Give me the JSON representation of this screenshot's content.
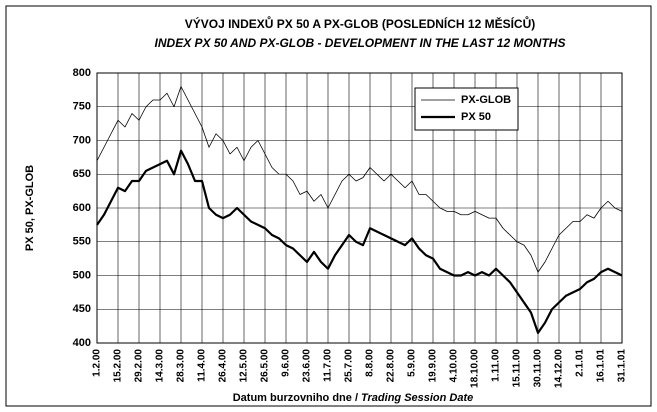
{
  "chart_data": {
    "type": "line",
    "title": "VÝVOJ INDEXŮ PX 50  A PX-GLOB (POSLEDNÍCH 12 MĚSÍCŮ)",
    "subtitle": "INDEX PX 50 AND PX-GLOB - DEVELOPMENT IN THE LAST 12 MONTHS",
    "xlabel": "Datum burzovniho dne /",
    "xlabel_en": "Trading Session Date",
    "ylabel": "PX 50, PX-GLOB",
    "categories": [
      "1.2.00",
      null,
      null,
      "15.2.00",
      null,
      null,
      "29.2.00",
      null,
      null,
      "14.3.00",
      null,
      null,
      "28.3.00",
      null,
      null,
      "11.4.00",
      null,
      null,
      "26.4.00",
      null,
      null,
      "12.5.00",
      null,
      null,
      "26.5.00",
      null,
      null,
      "9.6.00",
      null,
      null,
      "23.6.00",
      null,
      null,
      "11.7.00",
      null,
      null,
      "25.7.00",
      null,
      null,
      "8.8.00",
      null,
      null,
      "22.8.00",
      null,
      null,
      "5.9.00",
      null,
      null,
      "19.9.00",
      null,
      null,
      "4.10.00",
      null,
      null,
      "18.10.00",
      null,
      null,
      "1.11.00",
      null,
      null,
      "15.11.00",
      null,
      null,
      "30.11.00",
      null,
      null,
      "14.12.00",
      null,
      null,
      "2.1.01",
      null,
      null,
      "16.1.01",
      null,
      null,
      "31.1.01"
    ],
    "series": [
      {
        "name": "PX-GLOB",
        "color": "#000000",
        "width": 0.8,
        "values": [
          670,
          690,
          710,
          730,
          720,
          740,
          730,
          750,
          760,
          760,
          770,
          750,
          780,
          760,
          740,
          720,
          690,
          710,
          700,
          680,
          690,
          670,
          690,
          700,
          680,
          660,
          650,
          650,
          640,
          620,
          625,
          610,
          620,
          600,
          620,
          640,
          650,
          640,
          645,
          660,
          650,
          640,
          650,
          640,
          630,
          640,
          620,
          620,
          610,
          600,
          595,
          595,
          590,
          590,
          595,
          590,
          585,
          585,
          570,
          560,
          550,
          545,
          530,
          505,
          520,
          540,
          560,
          570,
          580,
          580,
          590,
          585,
          600,
          610,
          600,
          595
        ]
      },
      {
        "name": "PX 50",
        "color": "#000000",
        "width": 2.2,
        "values": [
          575,
          590,
          610,
          630,
          625,
          640,
          640,
          655,
          660,
          665,
          670,
          650,
          685,
          665,
          640,
          640,
          600,
          590,
          585,
          590,
          600,
          590,
          580,
          575,
          570,
          560,
          555,
          545,
          540,
          530,
          520,
          535,
          520,
          510,
          530,
          545,
          560,
          550,
          545,
          570,
          565,
          560,
          555,
          550,
          545,
          555,
          540,
          530,
          525,
          510,
          505,
          500,
          500,
          505,
          500,
          505,
          500,
          510,
          500,
          490,
          475,
          460,
          445,
          415,
          430,
          450,
          460,
          470,
          475,
          480,
          490,
          495,
          505,
          510,
          505,
          500
        ]
      }
    ],
    "ylim": [
      400,
      800
    ],
    "yticks": [
      400,
      450,
      500,
      550,
      600,
      650,
      700,
      750,
      800
    ],
    "grid": true,
    "legend": "upper right"
  }
}
